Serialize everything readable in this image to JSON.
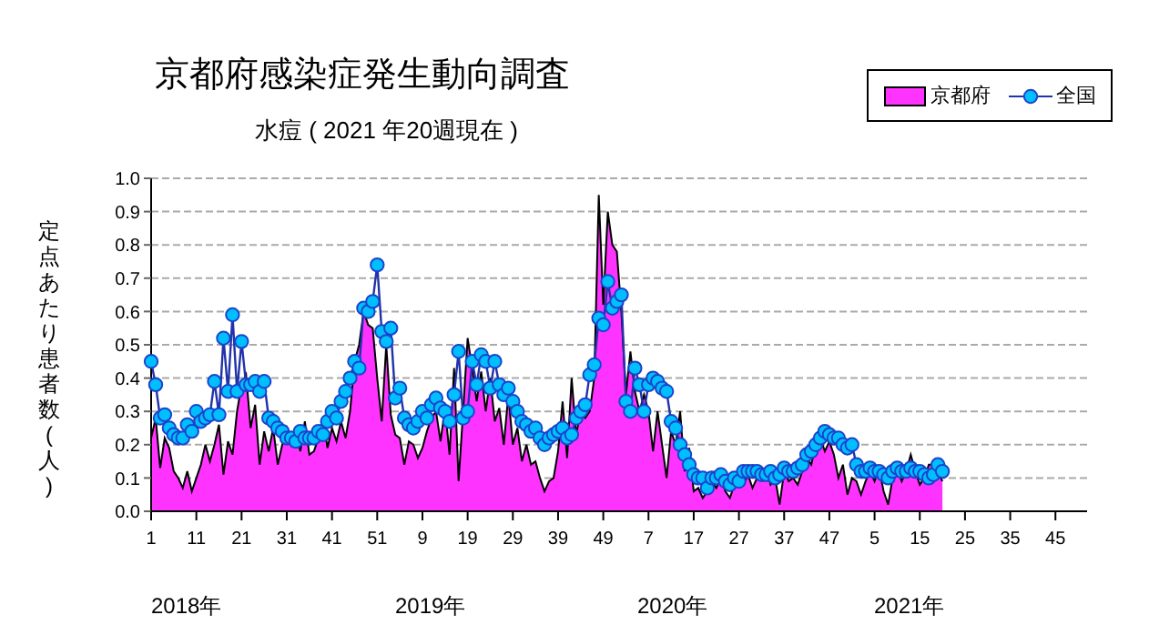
{
  "chart_data": {
    "type": "line",
    "title": "京都府感染症発生動向調査",
    "subtitle": "水痘 ( 2021 年20週現在 )",
    "ylabel": "定点あたり患者数(人)",
    "annotations": [
      "2018年",
      "2019年",
      "2020年",
      "2021年"
    ],
    "categories": [
      "1",
      null,
      null,
      null,
      null,
      null,
      null,
      null,
      null,
      null,
      "11",
      null,
      null,
      null,
      null,
      null,
      null,
      null,
      null,
      null,
      "21",
      null,
      null,
      null,
      null,
      null,
      null,
      null,
      null,
      null,
      "31",
      null,
      null,
      null,
      null,
      null,
      null,
      null,
      null,
      null,
      "41",
      null,
      null,
      null,
      null,
      null,
      null,
      null,
      null,
      null,
      "51",
      null,
      null,
      null,
      null,
      null,
      null,
      null,
      null,
      null,
      "9",
      null,
      null,
      null,
      null,
      null,
      null,
      null,
      null,
      null,
      "19",
      null,
      null,
      null,
      null,
      null,
      null,
      null,
      null,
      null,
      "29",
      null,
      null,
      null,
      null,
      null,
      null,
      null,
      null,
      null,
      "39",
      null,
      null,
      null,
      null,
      null,
      null,
      null,
      null,
      null,
      "49",
      null,
      null,
      null,
      null,
      null,
      null,
      null,
      null,
      null,
      "7",
      null,
      null,
      null,
      null,
      null,
      null,
      null,
      null,
      null,
      "17",
      null,
      null,
      null,
      null,
      null,
      null,
      null,
      null,
      null,
      "27",
      null,
      null,
      null,
      null,
      null,
      null,
      null,
      null,
      null,
      "37",
      null,
      null,
      null,
      null,
      null,
      null,
      null,
      null,
      null,
      "47",
      null,
      null,
      null,
      null,
      null,
      null,
      null,
      null,
      null,
      "5",
      null,
      null,
      null,
      null,
      null,
      null,
      null,
      null,
      null,
      "15",
      null,
      null,
      null,
      null,
      null,
      null,
      null,
      null,
      null,
      "25",
      null,
      null,
      null,
      null,
      null,
      null,
      null,
      null,
      null,
      "35",
      null,
      null,
      null,
      null,
      null,
      null,
      null,
      null,
      null,
      "45",
      null,
      null,
      null,
      null,
      null,
      null,
      null
    ],
    "series": [
      {
        "name": "京都府",
        "type": "area",
        "color": "#ff33ff",
        "values": [
          0.22,
          0.28,
          0.13,
          0.22,
          0.19,
          0.12,
          0.1,
          0.07,
          0.12,
          0.06,
          0.1,
          0.14,
          0.2,
          0.15,
          0.2,
          0.26,
          0.11,
          0.21,
          0.17,
          0.3,
          0.38,
          0.41,
          0.25,
          0.32,
          0.14,
          0.24,
          0.18,
          0.25,
          0.14,
          0.2,
          0.25,
          0.2,
          0.24,
          0.18,
          0.27,
          0.17,
          0.18,
          0.22,
          0.28,
          0.19,
          0.25,
          0.21,
          0.27,
          0.22,
          0.3,
          0.45,
          0.5,
          0.6,
          0.56,
          0.55,
          0.4,
          0.27,
          0.5,
          0.29,
          0.23,
          0.22,
          0.14,
          0.21,
          0.2,
          0.16,
          0.19,
          0.24,
          0.28,
          0.3,
          0.21,
          0.31,
          0.17,
          0.43,
          0.09,
          0.3,
          0.52,
          0.43,
          0.33,
          0.42,
          0.3,
          0.4,
          0.27,
          0.31,
          0.2,
          0.35,
          0.2,
          0.25,
          0.15,
          0.2,
          0.14,
          0.15,
          0.1,
          0.06,
          0.09,
          0.1,
          0.18,
          0.33,
          0.16,
          0.4,
          0.23,
          0.3,
          0.28,
          0.3,
          0.4,
          0.95,
          0.62,
          0.9,
          0.8,
          0.78,
          0.6,
          0.35,
          0.48,
          0.36,
          0.3,
          0.35,
          0.3,
          0.18,
          0.3,
          0.2,
          0.1,
          0.24,
          0.2,
          0.3,
          0.12,
          0.19,
          0.06,
          0.07,
          0.04,
          0.06,
          0.09,
          0.07,
          0.1,
          0.06,
          0.04,
          0.08,
          0.1,
          0.08,
          0.11,
          0.07,
          0.1,
          0.12,
          0.13,
          0.08,
          0.1,
          0.02,
          0.12,
          0.09,
          0.1,
          0.08,
          0.12,
          0.16,
          0.14,
          0.2,
          0.22,
          0.18,
          0.21,
          0.17,
          0.1,
          0.14,
          0.05,
          0.1,
          0.09,
          0.05,
          0.09,
          0.12,
          0.09,
          0.13,
          0.06,
          0.02,
          0.1,
          0.13,
          0.09,
          0.12,
          0.17,
          0.12,
          0.08,
          0.1,
          0.14,
          0.14,
          0.12,
          0.09,
          null,
          null,
          null,
          null,
          null,
          null,
          null,
          null,
          null,
          null,
          null,
          null,
          null,
          null,
          null,
          null,
          null,
          null,
          null,
          null,
          null,
          null,
          null,
          null,
          null,
          null,
          null,
          null,
          null,
          null,
          null,
          null
        ]
      },
      {
        "name": "全国",
        "color": "#00bfff",
        "marker": "circle",
        "values": [
          0.45,
          0.38,
          0.28,
          0.29,
          0.25,
          0.23,
          0.22,
          0.22,
          0.26,
          0.24,
          0.3,
          0.27,
          0.28,
          0.29,
          0.39,
          0.29,
          0.52,
          0.36,
          0.59,
          0.36,
          0.51,
          0.38,
          0.38,
          0.39,
          0.36,
          0.39,
          0.28,
          0.27,
          0.25,
          0.24,
          0.22,
          0.22,
          0.21,
          0.24,
          0.22,
          0.22,
          0.22,
          0.24,
          0.23,
          0.27,
          0.3,
          0.28,
          0.33,
          0.36,
          0.4,
          0.45,
          0.43,
          0.61,
          0.6,
          0.63,
          0.74,
          0.54,
          0.51,
          0.55,
          0.34,
          0.37,
          0.28,
          0.26,
          0.25,
          0.27,
          0.3,
          0.28,
          0.32,
          0.34,
          0.31,
          0.3,
          0.27,
          0.35,
          0.48,
          0.28,
          0.3,
          0.45,
          0.38,
          0.47,
          0.45,
          0.37,
          0.45,
          0.38,
          0.35,
          0.37,
          0.33,
          0.3,
          0.27,
          0.26,
          0.24,
          0.25,
          0.22,
          0.2,
          0.22,
          0.23,
          0.24,
          0.25,
          0.22,
          0.23,
          0.28,
          0.3,
          0.32,
          0.41,
          0.44,
          0.58,
          0.56,
          0.69,
          0.61,
          0.63,
          0.65,
          0.33,
          0.3,
          0.43,
          0.38,
          0.3,
          0.38,
          0.4,
          0.39,
          0.37,
          0.36,
          0.27,
          0.25,
          0.2,
          0.17,
          0.14,
          0.11,
          0.1,
          0.1,
          0.07,
          0.1,
          0.1,
          0.11,
          0.09,
          0.08,
          0.1,
          0.09,
          0.12,
          0.12,
          0.12,
          0.12,
          0.11,
          0.11,
          0.12,
          0.1,
          0.11,
          0.13,
          0.12,
          0.12,
          0.13,
          0.14,
          0.17,
          0.18,
          0.2,
          0.22,
          0.24,
          0.23,
          0.22,
          0.22,
          0.2,
          0.19,
          0.2,
          0.14,
          0.12,
          0.12,
          0.13,
          0.12,
          0.12,
          0.11,
          0.1,
          0.12,
          0.13,
          0.12,
          0.12,
          0.13,
          0.12,
          0.12,
          0.11,
          0.1,
          0.11,
          0.14,
          0.12,
          null,
          null,
          null,
          null,
          null,
          null,
          null,
          null,
          null,
          null,
          null,
          null,
          null,
          null,
          null,
          null,
          null,
          null,
          null,
          null,
          null,
          null,
          null,
          null,
          null,
          null,
          null,
          null,
          null,
          null,
          null,
          null
        ]
      }
    ],
    "ylim": [
      0,
      1
    ],
    "yticks": [
      {
        "value": 0,
        "label": "0.0"
      },
      {
        "value": 0.1,
        "label": "0.1"
      },
      {
        "value": 0.2,
        "label": "0.2"
      },
      {
        "value": 0.3,
        "label": "0.3"
      },
      {
        "value": 0.4,
        "label": "0.4"
      },
      {
        "value": 0.5,
        "label": "0.5"
      },
      {
        "value": 0.6,
        "label": "0.6"
      },
      {
        "value": 0.7,
        "label": "0.7"
      },
      {
        "value": 0.8,
        "label": "0.8"
      },
      {
        "value": 0.9,
        "label": "0.9"
      },
      {
        "value": 1,
        "label": "1.0"
      }
    ],
    "grid": "y",
    "legend": "top right"
  }
}
